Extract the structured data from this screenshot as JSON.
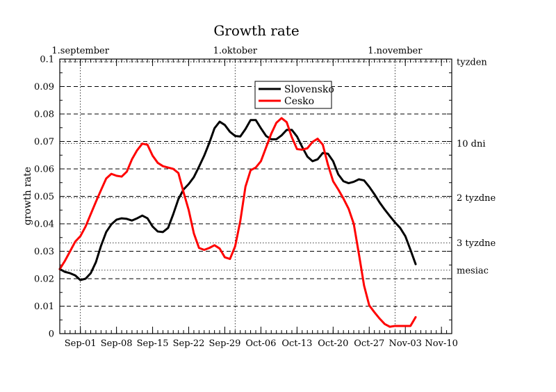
{
  "chart_data": {
    "type": "line",
    "title": "Growth rate",
    "xlabel": "",
    "ylabel": "growth rate",
    "ylim": [
      0,
      0.1
    ],
    "xlim": [
      "2020-08-28",
      "2020-11-12"
    ],
    "x_ticks": [
      {
        "date": "2020-09-01",
        "label": "Sep-01"
      },
      {
        "date": "2020-09-08",
        "label": "Sep-08"
      },
      {
        "date": "2020-09-15",
        "label": "Sep-15"
      },
      {
        "date": "2020-09-22",
        "label": "Sep-22"
      },
      {
        "date": "2020-09-29",
        "label": "Sep-29"
      },
      {
        "date": "2020-10-06",
        "label": "Oct-06"
      },
      {
        "date": "2020-10-13",
        "label": "Oct-13"
      },
      {
        "date": "2020-10-20",
        "label": "Oct-20"
      },
      {
        "date": "2020-10-27",
        "label": "Oct-27"
      },
      {
        "date": "2020-11-03",
        "label": "Nov-03"
      },
      {
        "date": "2020-11-10",
        "label": "Nov-10"
      }
    ],
    "y_ticks": [
      0,
      0.01,
      0.02,
      0.03,
      0.04,
      0.05,
      0.06,
      0.07,
      0.08,
      0.09,
      0.1
    ],
    "y_tick_labels": [
      "0",
      "0.01",
      "0.02",
      "0.03",
      "0.04",
      "0.05",
      "0.06",
      "0.07",
      "0.08",
      "0.09",
      "0.1"
    ],
    "top_labels": [
      {
        "date": "2020-09-01",
        "label": "1.september"
      },
      {
        "date": "2020-10-01",
        "label": "1.oktober"
      },
      {
        "date": "2020-11-01",
        "label": "1.november"
      }
    ],
    "right_labels": [
      {
        "y": 0.099,
        "label": "tyzden"
      },
      {
        "y": 0.0693,
        "label": "10 dni"
      },
      {
        "y": 0.0495,
        "label": "2 tyzdne"
      },
      {
        "y": 0.033,
        "label": "3 tyzdne"
      },
      {
        "y": 0.0231,
        "label": "mesiac"
      }
    ],
    "grid": true,
    "legend": "top-center",
    "series": [
      {
        "name": "Slovensko",
        "color": "#000000",
        "points": [
          [
            "2020-08-28",
            0.0235
          ],
          [
            "2020-08-29",
            0.0225
          ],
          [
            "2020-08-30",
            0.022
          ],
          [
            "2020-08-31",
            0.0212
          ],
          [
            "2020-09-01",
            0.0195
          ],
          [
            "2020-09-02",
            0.02
          ],
          [
            "2020-09-03",
            0.022
          ],
          [
            "2020-09-04",
            0.026
          ],
          [
            "2020-09-05",
            0.032
          ],
          [
            "2020-09-06",
            0.037
          ],
          [
            "2020-09-07",
            0.0398
          ],
          [
            "2020-09-08",
            0.0415
          ],
          [
            "2020-09-09",
            0.042
          ],
          [
            "2020-09-10",
            0.0418
          ],
          [
            "2020-09-11",
            0.0412
          ],
          [
            "2020-09-12",
            0.042
          ],
          [
            "2020-09-13",
            0.043
          ],
          [
            "2020-09-14",
            0.042
          ],
          [
            "2020-09-15",
            0.039
          ],
          [
            "2020-09-16",
            0.0372
          ],
          [
            "2020-09-17",
            0.037
          ],
          [
            "2020-09-18",
            0.0385
          ],
          [
            "2020-09-19",
            0.0435
          ],
          [
            "2020-09-20",
            0.049
          ],
          [
            "2020-09-21",
            0.0525
          ],
          [
            "2020-09-22",
            0.0545
          ],
          [
            "2020-09-23",
            0.057
          ],
          [
            "2020-09-24",
            0.0608
          ],
          [
            "2020-09-25",
            0.0648
          ],
          [
            "2020-09-26",
            0.0695
          ],
          [
            "2020-09-27",
            0.0748
          ],
          [
            "2020-09-28",
            0.0772
          ],
          [
            "2020-09-29",
            0.076
          ],
          [
            "2020-09-30",
            0.0735
          ],
          [
            "2020-10-01",
            0.072
          ],
          [
            "2020-10-02",
            0.0718
          ],
          [
            "2020-10-03",
            0.0745
          ],
          [
            "2020-10-04",
            0.0778
          ],
          [
            "2020-10-05",
            0.0778
          ],
          [
            "2020-10-06",
            0.0748
          ],
          [
            "2020-10-07",
            0.072
          ],
          [
            "2020-10-08",
            0.0708
          ],
          [
            "2020-10-09",
            0.0708
          ],
          [
            "2020-10-10",
            0.0722
          ],
          [
            "2020-10-11",
            0.0742
          ],
          [
            "2020-10-12",
            0.0742
          ],
          [
            "2020-10-13",
            0.0718
          ],
          [
            "2020-10-14",
            0.068
          ],
          [
            "2020-10-15",
            0.0645
          ],
          [
            "2020-10-16",
            0.0628
          ],
          [
            "2020-10-17",
            0.0635
          ],
          [
            "2020-10-18",
            0.0658
          ],
          [
            "2020-10-19",
            0.0655
          ],
          [
            "2020-10-20",
            0.0628
          ],
          [
            "2020-10-21",
            0.058
          ],
          [
            "2020-10-22",
            0.0555
          ],
          [
            "2020-10-23",
            0.0548
          ],
          [
            "2020-10-24",
            0.0553
          ],
          [
            "2020-10-25",
            0.0562
          ],
          [
            "2020-10-26",
            0.0558
          ],
          [
            "2020-10-27",
            0.0535
          ],
          [
            "2020-10-28",
            0.0508
          ],
          [
            "2020-10-29",
            0.0478
          ],
          [
            "2020-10-30",
            0.0452
          ],
          [
            "2020-10-31",
            0.0428
          ],
          [
            "2020-11-01",
            0.0405
          ],
          [
            "2020-11-02",
            0.0385
          ],
          [
            "2020-11-03",
            0.0355
          ],
          [
            "2020-11-04",
            0.0305
          ],
          [
            "2020-11-05",
            0.0253
          ]
        ]
      },
      {
        "name": "Cesko",
        "color": "#ff0000",
        "points": [
          [
            "2020-08-28",
            0.0235
          ],
          [
            "2020-08-29",
            0.0265
          ],
          [
            "2020-08-30",
            0.03
          ],
          [
            "2020-08-31",
            0.0335
          ],
          [
            "2020-09-01",
            0.0355
          ],
          [
            "2020-09-02",
            0.039
          ],
          [
            "2020-09-03",
            0.0435
          ],
          [
            "2020-09-04",
            0.048
          ],
          [
            "2020-09-05",
            0.0523
          ],
          [
            "2020-09-06",
            0.0565
          ],
          [
            "2020-09-07",
            0.0582
          ],
          [
            "2020-09-08",
            0.0575
          ],
          [
            "2020-09-09",
            0.0572
          ],
          [
            "2020-09-10",
            0.059
          ],
          [
            "2020-09-11",
            0.0635
          ],
          [
            "2020-09-12",
            0.0668
          ],
          [
            "2020-09-13",
            0.0692
          ],
          [
            "2020-09-14",
            0.0688
          ],
          [
            "2020-09-15",
            0.0648
          ],
          [
            "2020-09-16",
            0.0622
          ],
          [
            "2020-09-17",
            0.061
          ],
          [
            "2020-09-18",
            0.0605
          ],
          [
            "2020-09-19",
            0.06
          ],
          [
            "2020-09-20",
            0.0585
          ],
          [
            "2020-09-21",
            0.0515
          ],
          [
            "2020-09-22",
            0.045
          ],
          [
            "2020-09-23",
            0.0365
          ],
          [
            "2020-09-24",
            0.0312
          ],
          [
            "2020-09-25",
            0.0305
          ],
          [
            "2020-09-26",
            0.0312
          ],
          [
            "2020-09-27",
            0.0322
          ],
          [
            "2020-09-28",
            0.031
          ],
          [
            "2020-09-29",
            0.0278
          ],
          [
            "2020-09-30",
            0.0272
          ],
          [
            "2020-10-01",
            0.0318
          ],
          [
            "2020-10-02",
            0.041
          ],
          [
            "2020-10-03",
            0.0535
          ],
          [
            "2020-10-04",
            0.0595
          ],
          [
            "2020-10-05",
            0.0605
          ],
          [
            "2020-10-06",
            0.0628
          ],
          [
            "2020-10-07",
            0.0678
          ],
          [
            "2020-10-08",
            0.0728
          ],
          [
            "2020-10-09",
            0.0768
          ],
          [
            "2020-10-10",
            0.0785
          ],
          [
            "2020-10-11",
            0.077
          ],
          [
            "2020-10-12",
            0.0715
          ],
          [
            "2020-10-13",
            0.0672
          ],
          [
            "2020-10-14",
            0.067
          ],
          [
            "2020-10-15",
            0.0675
          ],
          [
            "2020-10-16",
            0.0698
          ],
          [
            "2020-10-17",
            0.071
          ],
          [
            "2020-10-18",
            0.0688
          ],
          [
            "2020-10-19",
            0.0615
          ],
          [
            "2020-10-20",
            0.0555
          ],
          [
            "2020-10-21",
            0.0525
          ],
          [
            "2020-10-22",
            0.0492
          ],
          [
            "2020-10-23",
            0.0455
          ],
          [
            "2020-10-24",
            0.04
          ],
          [
            "2020-10-25",
            0.029
          ],
          [
            "2020-10-26",
            0.0175
          ],
          [
            "2020-10-27",
            0.0103
          ],
          [
            "2020-10-28",
            0.0078
          ],
          [
            "2020-10-29",
            0.0055
          ],
          [
            "2020-10-30",
            0.0035
          ],
          [
            "2020-10-31",
            0.0025
          ],
          [
            "2020-11-01",
            0.0028
          ],
          [
            "2020-11-02",
            0.0028
          ],
          [
            "2020-11-03",
            0.0028
          ],
          [
            "2020-11-04",
            0.0028
          ],
          [
            "2020-11-05",
            0.006
          ]
        ]
      }
    ]
  }
}
